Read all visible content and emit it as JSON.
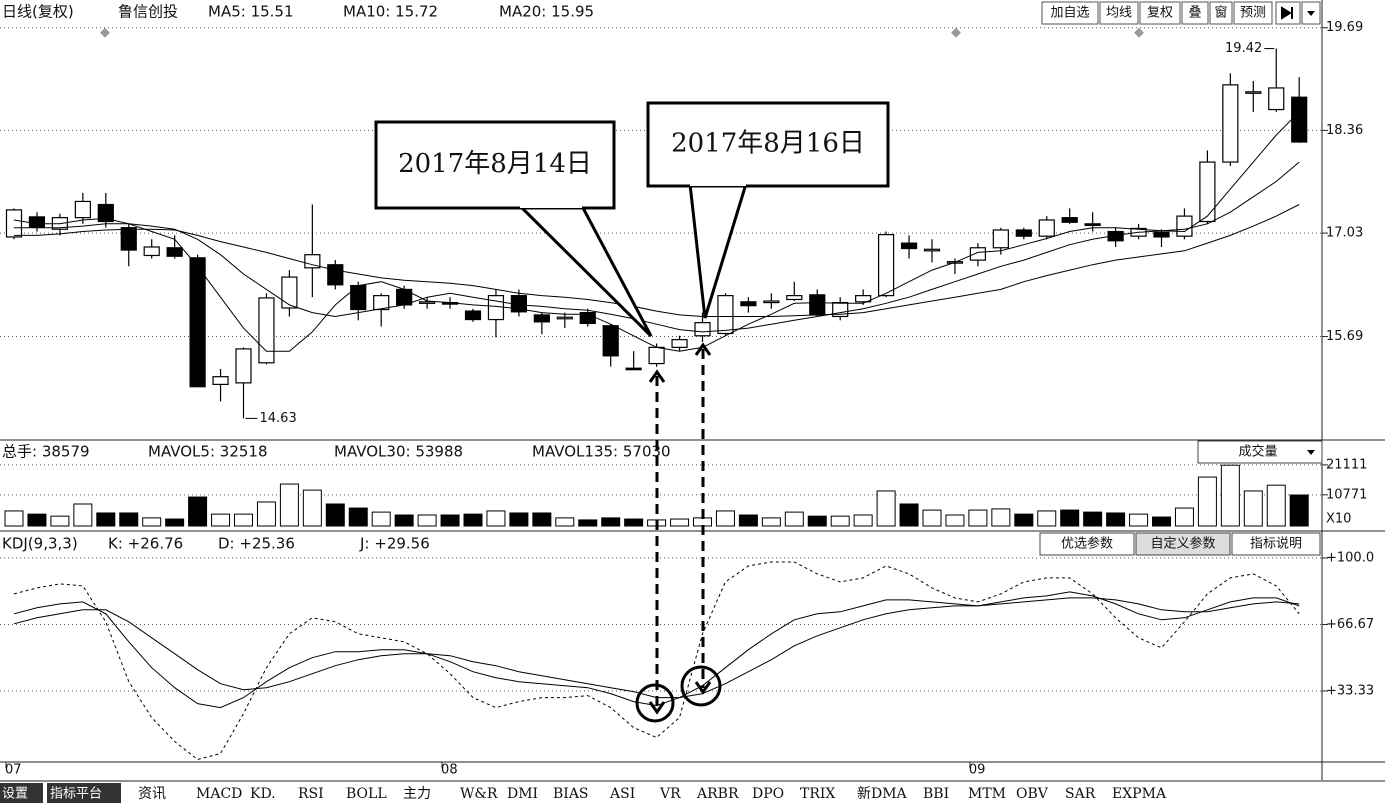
{
  "chart_data": [
    {
      "type": "candlestick",
      "title": "日线(复权)",
      "subtitle": "鲁信创投",
      "categories": [
        "07",
        null,
        null,
        null,
        null,
        null,
        null,
        null,
        null,
        null,
        null,
        null,
        null,
        null,
        null,
        null,
        null,
        null,
        null,
        "08",
        null,
        null,
        null,
        null,
        null,
        null,
        null,
        null,
        null,
        null,
        null,
        null,
        null,
        null,
        null,
        null,
        null,
        null,
        null,
        null,
        null,
        null,
        "09",
        null,
        null,
        null,
        null,
        null,
        null,
        null,
        null,
        null,
        null,
        null,
        null,
        null,
        null
      ],
      "open": [
        16.98,
        17.24,
        17.08,
        17.23,
        17.4,
        17.1,
        16.74,
        16.84,
        16.71,
        15.07,
        15.09,
        15.35,
        16.06,
        16.58,
        16.62,
        16.35,
        16.04,
        16.3,
        16.12,
        16.13,
        16.02,
        15.91,
        16.22,
        15.97,
        15.92,
        16.0,
        15.83,
        15.28,
        15.34,
        15.55,
        15.7,
        15.73,
        16.14,
        16.13,
        16.17,
        16.23,
        15.95,
        16.14,
        16.22,
        16.9,
        16.8,
        16.65,
        16.68,
        16.84,
        17.07,
        16.99,
        17.23,
        17.15,
        17.05,
        16.99,
        17.04,
        16.99,
        17.18,
        17.95,
        18.85,
        18.63,
        18.79
      ],
      "high": [
        17.35,
        17.3,
        17.28,
        17.55,
        17.55,
        17.15,
        16.95,
        17.0,
        16.75,
        15.27,
        15.55,
        16.25,
        16.55,
        17.4,
        16.68,
        16.4,
        16.25,
        16.35,
        16.2,
        16.2,
        16.05,
        16.3,
        16.3,
        16.0,
        16.0,
        16.05,
        15.85,
        15.5,
        15.6,
        15.7,
        16.0,
        16.25,
        16.2,
        16.25,
        16.4,
        16.3,
        16.2,
        16.3,
        17.05,
        17.0,
        16.95,
        16.7,
        16.9,
        17.1,
        17.1,
        17.25,
        17.35,
        17.3,
        17.1,
        17.15,
        17.08,
        17.35,
        18.1,
        19.1,
        19.0,
        19.42,
        19.05
      ],
      "low": [
        16.95,
        17.05,
        17.0,
        17.15,
        17.1,
        16.6,
        16.7,
        16.7,
        15.04,
        14.85,
        14.63,
        15.33,
        15.95,
        16.2,
        16.3,
        15.9,
        15.82,
        16.05,
        16.05,
        16.05,
        15.88,
        15.68,
        15.95,
        15.72,
        15.8,
        15.82,
        15.3,
        15.26,
        15.3,
        15.5,
        15.62,
        15.7,
        16.0,
        16.05,
        16.15,
        15.95,
        15.9,
        16.1,
        16.2,
        16.7,
        16.65,
        16.5,
        16.6,
        16.75,
        16.95,
        16.95,
        17.15,
        17.05,
        16.85,
        16.95,
        16.85,
        16.95,
        17.15,
        17.9,
        18.6,
        18.6,
        18.2
      ],
      "close": [
        17.33,
        17.11,
        17.23,
        17.44,
        17.18,
        16.81,
        16.85,
        16.73,
        15.04,
        15.17,
        15.53,
        16.19,
        16.46,
        16.75,
        16.36,
        16.04,
        16.22,
        16.1,
        16.14,
        16.11,
        15.91,
        16.22,
        16.01,
        15.88,
        15.94,
        15.86,
        15.44,
        15.27,
        15.55,
        15.65,
        15.87,
        16.22,
        16.09,
        16.15,
        16.22,
        15.97,
        16.13,
        16.22,
        17.01,
        16.83,
        16.82,
        16.66,
        16.84,
        17.07,
        16.99,
        17.2,
        17.17,
        17.13,
        16.93,
        17.09,
        16.98,
        17.25,
        17.95,
        18.95,
        18.86,
        18.91,
        18.21
      ],
      "series": [
        {
          "name": "MA5: 15.51",
          "color": "#000000",
          "values": [
            17.2,
            17.15,
            17.15,
            17.2,
            17.22,
            17.15,
            17.05,
            16.95,
            16.6,
            16.2,
            15.8,
            15.5,
            15.5,
            15.75,
            16.1,
            16.35,
            16.4,
            16.3,
            16.15,
            16.13,
            16.1,
            16.08,
            16.05,
            16.0,
            15.98,
            15.98,
            15.85,
            15.7,
            15.55,
            15.5,
            15.55,
            15.7,
            15.85,
            15.98,
            16.12,
            16.13,
            16.12,
            16.12,
            16.25,
            16.4,
            16.55,
            16.65,
            16.78,
            16.8,
            16.88,
            16.96,
            17.05,
            17.1,
            17.1,
            17.08,
            17.06,
            17.05,
            17.25,
            17.6,
            17.95,
            18.3,
            18.6
          ]
        },
        {
          "name": "MA10: 15.72",
          "color": "#000000",
          "values": [
            17.1,
            17.1,
            17.1,
            17.12,
            17.15,
            17.15,
            17.12,
            17.08,
            16.95,
            16.75,
            16.5,
            16.3,
            16.1,
            16.0,
            15.95,
            16.0,
            16.05,
            16.1,
            16.2,
            16.25,
            16.2,
            16.15,
            16.1,
            16.08,
            16.05,
            16.03,
            15.98,
            15.92,
            15.85,
            15.78,
            15.75,
            15.77,
            15.8,
            15.85,
            15.9,
            15.95,
            16.0,
            16.05,
            16.12,
            16.2,
            16.3,
            16.4,
            16.5,
            16.6,
            16.68,
            16.78,
            16.88,
            16.95,
            17.0,
            17.04,
            17.06,
            17.08,
            17.15,
            17.3,
            17.5,
            17.7,
            17.95
          ]
        },
        {
          "name": "MA20: 15.95",
          "color": "#000000",
          "values": [
            17.0,
            17.0,
            17.02,
            17.05,
            17.07,
            17.08,
            17.08,
            17.07,
            17.0,
            16.92,
            16.85,
            16.78,
            16.7,
            16.62,
            16.55,
            16.5,
            16.45,
            16.42,
            16.4,
            16.38,
            16.35,
            16.3,
            16.25,
            16.22,
            16.2,
            16.17,
            16.13,
            16.08,
            16.02,
            15.97,
            15.95,
            15.95,
            15.95,
            15.95,
            15.96,
            15.97,
            15.98,
            16.0,
            16.05,
            16.1,
            16.15,
            16.2,
            16.25,
            16.3,
            16.4,
            16.48,
            16.55,
            16.62,
            16.68,
            16.72,
            16.76,
            16.8,
            16.9,
            17.0,
            17.12,
            17.25,
            17.4
          ]
        }
      ],
      "ylim": [
        14.35,
        19.79
      ],
      "yticks": [
        19.69,
        18.36,
        17.03,
        15.69
      ],
      "grid": true,
      "high_label": 19.42,
      "low_label": 14.63,
      "callouts": [
        "2017年8月14日",
        "2017年8月16日"
      ]
    },
    {
      "type": "bar",
      "title": "总手: 38579",
      "header": [
        "MAVOL5: 32518",
        "MAVOL30: 53988",
        "MAVOL135: 57030"
      ],
      "selector": "成交量",
      "unit_label": "X10",
      "values": [
        5200,
        4100,
        3400,
        7600,
        4500,
        4500,
        2800,
        2400,
        10000,
        4100,
        4100,
        8300,
        14500,
        12400,
        7600,
        6200,
        4800,
        3800,
        3800,
        3800,
        4100,
        5200,
        4500,
        4500,
        2800,
        2100,
        2800,
        2400,
        2100,
        2400,
        2800,
        5200,
        3800,
        2800,
        4800,
        3400,
        3400,
        3800,
        12100,
        7600,
        5500,
        3800,
        5500,
        5900,
        4100,
        5200,
        5500,
        4800,
        4500,
        4100,
        3100,
        6200,
        16900,
        21000,
        12100,
        14100,
        10700
      ],
      "ylim": [
        0,
        22800
      ],
      "yticks": [
        21111,
        10771
      ],
      "grid": true
    },
    {
      "type": "line",
      "title": "KDJ(9,3,3)",
      "buttons": [
        "优选参数",
        "自定义参数",
        "指标说明"
      ],
      "series": [
        {
          "name": "K: +26.76",
          "color": "#000000",
          "values": [
            72,
            75,
            77,
            78,
            72,
            58,
            45,
            35,
            27,
            25,
            30,
            38,
            45,
            50,
            53,
            53,
            54,
            54,
            52,
            48,
            43,
            40,
            38,
            37,
            36,
            35,
            32,
            28,
            26,
            30,
            36,
            45,
            54,
            62,
            69,
            72,
            73,
            76,
            79,
            79,
            78,
            77,
            76,
            78,
            80,
            81,
            83,
            81,
            77,
            72,
            69,
            70,
            74,
            78,
            80,
            80,
            76
          ]
        },
        {
          "name": "D: +25.36",
          "color": "#000000",
          "values": [
            67,
            70,
            72,
            74,
            74,
            68,
            60,
            52,
            44,
            37,
            34,
            35,
            38,
            42,
            46,
            49,
            51,
            52,
            52,
            51,
            48,
            46,
            43,
            41,
            39,
            37,
            35,
            33,
            30,
            30,
            32,
            37,
            43,
            49,
            56,
            61,
            65,
            69,
            72,
            74,
            75,
            76,
            76,
            77,
            78,
            79,
            80,
            80,
            79,
            77,
            74,
            73,
            73,
            75,
            77,
            78,
            77
          ]
        },
        {
          "name": "J: +29.56",
          "color": "#000000",
          "dashed": true,
          "values": [
            82,
            85,
            87,
            86,
            68,
            38,
            20,
            8,
            -1,
            2,
            22,
            45,
            62,
            70,
            68,
            62,
            60,
            58,
            52,
            42,
            30,
            25,
            28,
            30,
            30,
            31,
            25,
            15,
            10,
            20,
            62,
            88,
            96,
            98,
            98,
            92,
            88,
            90,
            96,
            92,
            85,
            80,
            78,
            82,
            88,
            90,
            90,
            82,
            70,
            60,
            55,
            68,
            82,
            90,
            92,
            86,
            72
          ]
        }
      ],
      "ylim": [
        -1.26,
        106.5
      ],
      "yticks": [
        {
          "value": 100,
          "label": "+100.0"
        },
        {
          "value": 66.67,
          "label": "+66.67"
        },
        {
          "value": 33.33,
          "label": "+33.33"
        }
      ],
      "grid": true
    }
  ],
  "toolbar": [
    "加自选",
    "均线",
    "复权",
    "叠",
    "窗",
    "预测"
  ],
  "tabs": [
    "设置",
    "指标平台",
    "资讯",
    "MACD",
    "KD.",
    "RSI",
    "BOLL",
    "主力",
    "W&R",
    "DMI",
    "BIAS",
    "ASI",
    "VR",
    "ARBR",
    "DPO",
    "TRIX",
    "新DMA",
    "BBI",
    "MTM",
    "OBV",
    "SAR",
    "EXPMA"
  ]
}
